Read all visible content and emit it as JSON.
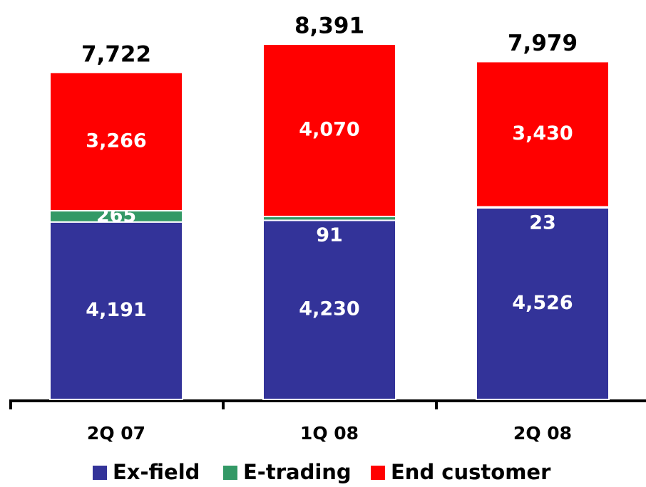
{
  "chart_data": {
    "type": "stacked_bar",
    "categories": [
      "2Q 07",
      "1Q 08",
      "2Q 08"
    ],
    "series": [
      {
        "name": "Ex-field",
        "color": "#333399",
        "values": [
          4191,
          4230,
          4526
        ],
        "value_labels": [
          "4,191",
          "4,230",
          "4,526"
        ]
      },
      {
        "name": "E-trading",
        "color": "#339966",
        "values": [
          265,
          91,
          23
        ]
      },
      {
        "name": "End customer",
        "color": "#ff0000",
        "values": [
          3266,
          4070,
          3430
        ],
        "value_labels": [
          "3,266",
          "4,070",
          "3,430"
        ]
      }
    ],
    "totals": [
      7722,
      8391,
      7979
    ],
    "total_labels": [
      "7,722",
      "8,391",
      "7,979"
    ]
  }
}
